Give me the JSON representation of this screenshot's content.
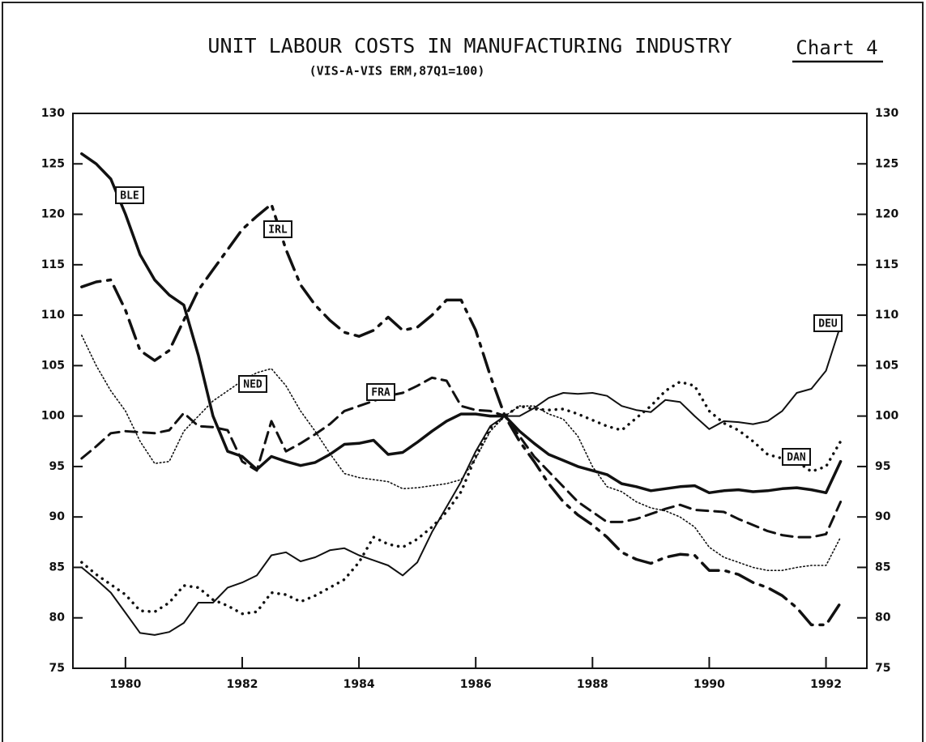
{
  "chart_data": {
    "type": "line",
    "title": "UNIT LABOUR COSTS IN MANUFACTURING INDUSTRY",
    "subtitle": "(VIS-A-VIS ERM,87Q1=100)",
    "annotation": "Chart 4",
    "x": [
      1979.25,
      1979.5,
      1979.75,
      1980,
      1980.25,
      1980.5,
      1980.75,
      1981,
      1981.25,
      1981.5,
      1981.75,
      1982,
      1982.25,
      1982.5,
      1982.75,
      1983,
      1983.25,
      1983.5,
      1983.75,
      1984,
      1984.25,
      1984.5,
      1984.75,
      1985,
      1985.25,
      1985.5,
      1985.75,
      1986,
      1986.25,
      1986.5,
      1986.75,
      1987,
      1987.25,
      1987.5,
      1987.75,
      1988,
      1988.25,
      1988.5,
      1988.75,
      1989,
      1989.25,
      1989.5,
      1989.75,
      1990,
      1990.25,
      1990.5,
      1990.75,
      1991,
      1991.25,
      1991.5,
      1991.75,
      1992,
      1992.25
    ],
    "xlim": [
      1979.1,
      1992.7
    ],
    "xticks": [
      1980,
      1982,
      1984,
      1986,
      1988,
      1990,
      1992
    ],
    "ylim": [
      75,
      130
    ],
    "yticks": [
      75,
      80,
      85,
      90,
      95,
      100,
      105,
      110,
      115,
      120,
      125,
      130
    ],
    "series": [
      {
        "name": "BLE",
        "color": "#111111",
        "style": "solid-thick",
        "values": [
          126,
          125,
          123.5,
          120,
          116,
          113.5,
          112,
          111,
          106,
          100,
          96.5,
          96,
          94.7,
          96,
          95.5,
          95.1,
          95.4,
          96.2,
          97.2,
          97.3,
          97.6,
          96.2,
          96.4,
          97.4,
          98.5,
          99.5,
          100.2,
          100.2,
          100,
          100,
          98.5,
          97.3,
          96.2,
          95.6,
          95,
          94.6,
          94.2,
          93.3,
          93,
          92.6,
          92.8,
          93,
          93.1,
          92.4,
          92.6,
          92.7,
          92.5,
          92.6,
          92.8,
          92.9,
          92.7,
          92.4,
          95.5
        ]
      },
      {
        "name": "IRL",
        "color": "#111111",
        "style": "dashdot",
        "values": [
          112.8,
          113.3,
          113.5,
          110.5,
          106.5,
          105.5,
          106.5,
          109.5,
          112.5,
          114.5,
          116.5,
          118.5,
          119.8,
          121,
          116.5,
          113,
          111,
          109.5,
          108.3,
          107.9,
          108.5,
          109.8,
          108.5,
          108.8,
          110,
          111.5,
          111.5,
          108.5,
          104,
          100,
          97.5,
          95.5,
          93.3,
          91.5,
          90.2,
          89.2,
          88,
          86.5,
          85.8,
          85.4,
          86,
          86.3,
          86.2,
          84.7,
          84.7,
          84.3,
          83.5,
          83,
          82.2,
          81,
          79.3,
          79.3,
          81.5
        ]
      },
      {
        "name": "NED",
        "color": "#111111",
        "style": "dotted-thin",
        "values": [
          108,
          105,
          102.5,
          100.5,
          97.5,
          95.3,
          95.5,
          98.5,
          100,
          101.5,
          102.5,
          103.5,
          104.3,
          104.7,
          103,
          100.5,
          98.5,
          96.3,
          94.3,
          93.9,
          93.7,
          93.5,
          92.8,
          92.9,
          93.1,
          93.3,
          93.7,
          95.8,
          98.5,
          100,
          101,
          101,
          100.2,
          99.7,
          98,
          95,
          93,
          92.5,
          91.5,
          90.9,
          90.6,
          90,
          89,
          87,
          86,
          85.5,
          85,
          84.7,
          84.7,
          85,
          85.2,
          85.2,
          88
        ]
      },
      {
        "name": "FRA",
        "color": "#111111",
        "style": "dashed",
        "values": [
          95.8,
          97,
          98.3,
          98.5,
          98.4,
          98.3,
          98.6,
          100.3,
          99,
          98.9,
          98.6,
          95.5,
          94.6,
          99.5,
          96.5,
          97.3,
          98.2,
          99.2,
          100.5,
          101,
          101.5,
          102,
          102.3,
          103,
          103.8,
          103.5,
          101,
          100.6,
          100.5,
          100,
          98,
          96,
          94.5,
          93,
          91.5,
          90.5,
          89.5,
          89.5,
          89.8,
          90.3,
          90.8,
          91.2,
          90.7,
          90.6,
          90.5,
          89.8,
          89.2,
          88.6,
          88.2,
          88,
          88,
          88.3,
          91.5
        ]
      },
      {
        "name": "DEU",
        "color": "#111111",
        "style": "solid-thin",
        "values": [
          85,
          83.8,
          82.5,
          80.5,
          78.5,
          78.3,
          78.6,
          79.5,
          81.5,
          81.5,
          83,
          83.5,
          84.2,
          86.2,
          86.5,
          85.6,
          86,
          86.7,
          86.9,
          86.2,
          85.7,
          85.2,
          84.2,
          85.5,
          88.5,
          91,
          93.5,
          96.5,
          99,
          100,
          100,
          100.8,
          101.8,
          102.3,
          102.2,
          102.3,
          102,
          101,
          100.6,
          100.4,
          101.6,
          101.4,
          100,
          98.7,
          99.5,
          99.4,
          99.2,
          99.5,
          100.5,
          102.3,
          102.7,
          104.5,
          109
        ]
      },
      {
        "name": "DAN",
        "color": "#111111",
        "style": "dotted-thick",
        "values": [
          85.5,
          84.3,
          83.3,
          82.3,
          80.7,
          80.6,
          81.5,
          83.2,
          83,
          81.8,
          81.2,
          80.4,
          80.6,
          82.5,
          82.3,
          81.6,
          82.2,
          83,
          83.8,
          85.5,
          88,
          87.3,
          87,
          87.8,
          89,
          90.5,
          92.5,
          96,
          98.8,
          100,
          101,
          100.7,
          100.6,
          100.7,
          100.2,
          99.6,
          99,
          98.6,
          99.8,
          101,
          102.5,
          103.4,
          103,
          100.5,
          99.3,
          98.6,
          97.5,
          96.2,
          95.8,
          95.5,
          94.5,
          95,
          97.5
        ]
      }
    ]
  }
}
